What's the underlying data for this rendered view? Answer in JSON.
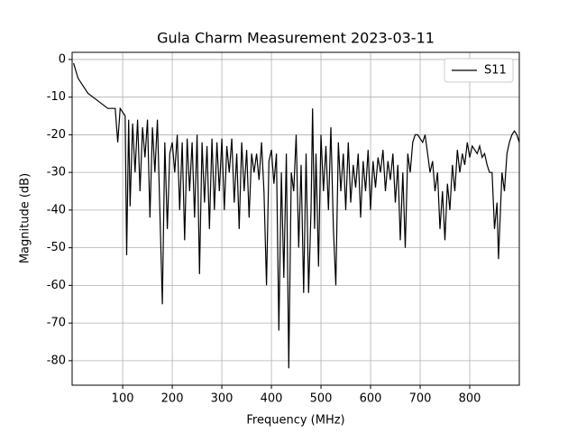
{
  "chart_data": {
    "type": "line",
    "title": "Gula Charm Measurement 2023-03-11",
    "x_label": "Frequency (MHz)",
    "y_label": "Magnitude (dB)",
    "xlim": [
      -2,
      900
    ],
    "ylim": [
      -86.5,
      1.9
    ],
    "xticks": [
      100,
      200,
      300,
      400,
      500,
      600,
      700,
      800
    ],
    "yticks": [
      0,
      -10,
      -20,
      -30,
      -40,
      -50,
      -60,
      -70,
      -80
    ],
    "grid": true,
    "legend": "upper right",
    "x": [
      1,
      10,
      20,
      30,
      50,
      70,
      85,
      90,
      95,
      100,
      105,
      108,
      112,
      115,
      120,
      125,
      130,
      135,
      140,
      145,
      150,
      155,
      160,
      165,
      170,
      175,
      180,
      185,
      190,
      195,
      200,
      205,
      210,
      215,
      220,
      225,
      230,
      235,
      240,
      245,
      250,
      255,
      260,
      265,
      270,
      275,
      280,
      285,
      290,
      295,
      300,
      305,
      310,
      315,
      320,
      325,
      330,
      335,
      340,
      345,
      350,
      355,
      360,
      365,
      370,
      375,
      380,
      385,
      390,
      395,
      400,
      405,
      410,
      415,
      420,
      425,
      430,
      435,
      440,
      445,
      450,
      455,
      460,
      465,
      470,
      475,
      480,
      483,
      487,
      490,
      495,
      500,
      505,
      510,
      515,
      520,
      525,
      530,
      535,
      540,
      545,
      550,
      555,
      560,
      565,
      570,
      575,
      580,
      585,
      590,
      595,
      600,
      605,
      610,
      615,
      620,
      625,
      630,
      635,
      640,
      645,
      650,
      655,
      660,
      665,
      670,
      675,
      680,
      685,
      690,
      695,
      700,
      705,
      710,
      715,
      720,
      725,
      730,
      735,
      740,
      745,
      750,
      755,
      760,
      765,
      770,
      775,
      780,
      785,
      790,
      795,
      800,
      805,
      810,
      815,
      820,
      825,
      830,
      835,
      840,
      845,
      850,
      855,
      858,
      862,
      865,
      870,
      875,
      880,
      885,
      890,
      895,
      900
    ],
    "series": [
      {
        "name": "S11",
        "color": "#000000",
        "values": [
          -1,
          -5,
          -7,
          -9,
          -11,
          -13,
          -13,
          -22,
          -13,
          -14,
          -15,
          -52,
          -16,
          -39,
          -17,
          -30,
          -16,
          -35,
          -18,
          -26,
          -16,
          -42,
          -18,
          -30,
          -16,
          -40,
          -65,
          -22,
          -45,
          -25,
          -22,
          -30,
          -20,
          -40,
          -22,
          -48,
          -21,
          -35,
          -22,
          -42,
          -20,
          -57,
          -22,
          -38,
          -23,
          -45,
          -21,
          -40,
          -22,
          -35,
          -21,
          -40,
          -23,
          -30,
          -21,
          -38,
          -25,
          -45,
          -22,
          -35,
          -24,
          -42,
          -25,
          -30,
          -25,
          -32,
          -22,
          -35,
          -60,
          -27,
          -24,
          -33,
          -25,
          -72,
          -30,
          -58,
          -25,
          -82,
          -30,
          -35,
          -20,
          -50,
          -28,
          -62,
          -25,
          -62,
          -40,
          -13,
          -45,
          -25,
          -55,
          -20,
          -35,
          -23,
          -40,
          -18,
          -45,
          -60,
          -22,
          -35,
          -25,
          -40,
          -22,
          -38,
          -28,
          -34,
          -25,
          -42,
          -27,
          -35,
          -24,
          -40,
          -27,
          -34,
          -26,
          -30,
          -24,
          -35,
          -27,
          -32,
          -25,
          -38,
          -28,
          -48,
          -30,
          -50,
          -25,
          -30,
          -22,
          -20,
          -20,
          -21,
          -22,
          -20,
          -25,
          -30,
          -27,
          -35,
          -30,
          -45,
          -35,
          -48,
          -33,
          -40,
          -28,
          -35,
          -24,
          -30,
          -25,
          -28,
          -22,
          -26,
          -23,
          -24,
          -25,
          -23,
          -26,
          -25,
          -28,
          -30,
          -30,
          -45,
          -38,
          -53,
          -40,
          -30,
          -35,
          -25,
          -22,
          -20,
          -19,
          -20,
          -22
        ]
      }
    ]
  }
}
